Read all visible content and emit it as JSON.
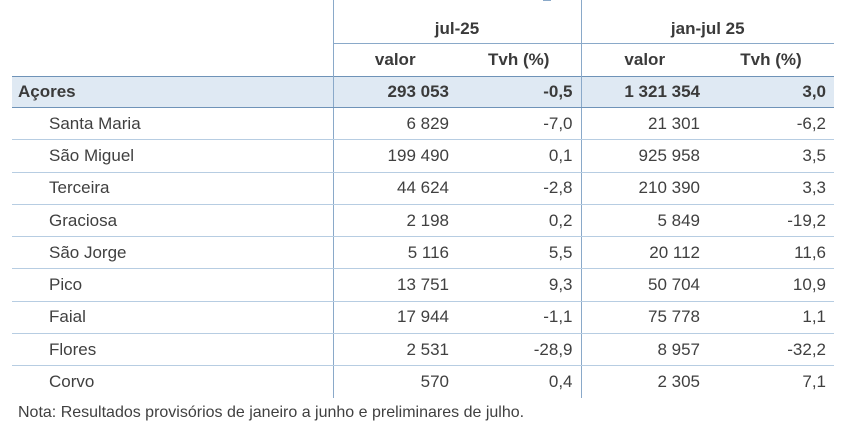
{
  "header": {
    "group1": "jul-25",
    "group2": "jan-jul 25",
    "col_valor": "valor",
    "col_tvh": "Tvh (%)"
  },
  "total": {
    "label": "Açores",
    "jul_valor": "293 053",
    "jul_tvh": "-0,5",
    "ytd_valor": "1 321 354",
    "ytd_tvh": "3,0"
  },
  "rows": [
    {
      "label": "Santa Maria",
      "jul_valor": "6 829",
      "jul_tvh": "-7,0",
      "ytd_valor": "21 301",
      "ytd_tvh": "-6,2"
    },
    {
      "label": "São Miguel",
      "jul_valor": "199 490",
      "jul_tvh": "0,1",
      "ytd_valor": "925 958",
      "ytd_tvh": "3,5"
    },
    {
      "label": "Terceira",
      "jul_valor": "44 624",
      "jul_tvh": "-2,8",
      "ytd_valor": "210 390",
      "ytd_tvh": "3,3"
    },
    {
      "label": "Graciosa",
      "jul_valor": "2 198",
      "jul_tvh": "0,2",
      "ytd_valor": "5 849",
      "ytd_tvh": "-19,2"
    },
    {
      "label": "São Jorge",
      "jul_valor": "5 116",
      "jul_tvh": "5,5",
      "ytd_valor": "20 112",
      "ytd_tvh": "11,6"
    },
    {
      "label": "Pico",
      "jul_valor": "13 751",
      "jul_tvh": "9,3",
      "ytd_valor": "50 704",
      "ytd_tvh": "10,9"
    },
    {
      "label": "Faial",
      "jul_valor": "17 944",
      "jul_tvh": "-1,1",
      "ytd_valor": "75 778",
      "ytd_tvh": "1,1"
    },
    {
      "label": "Flores",
      "jul_valor": "2 531",
      "jul_tvh": "-28,9",
      "ytd_valor": "8 957",
      "ytd_tvh": "-32,2"
    },
    {
      "label": "Corvo",
      "jul_valor": "570",
      "jul_tvh": "0,4",
      "ytd_valor": "2 305",
      "ytd_tvh": "7,1"
    }
  ],
  "note": "Nota: Resultados provisórios de janeiro a junho e preliminares de julho."
}
